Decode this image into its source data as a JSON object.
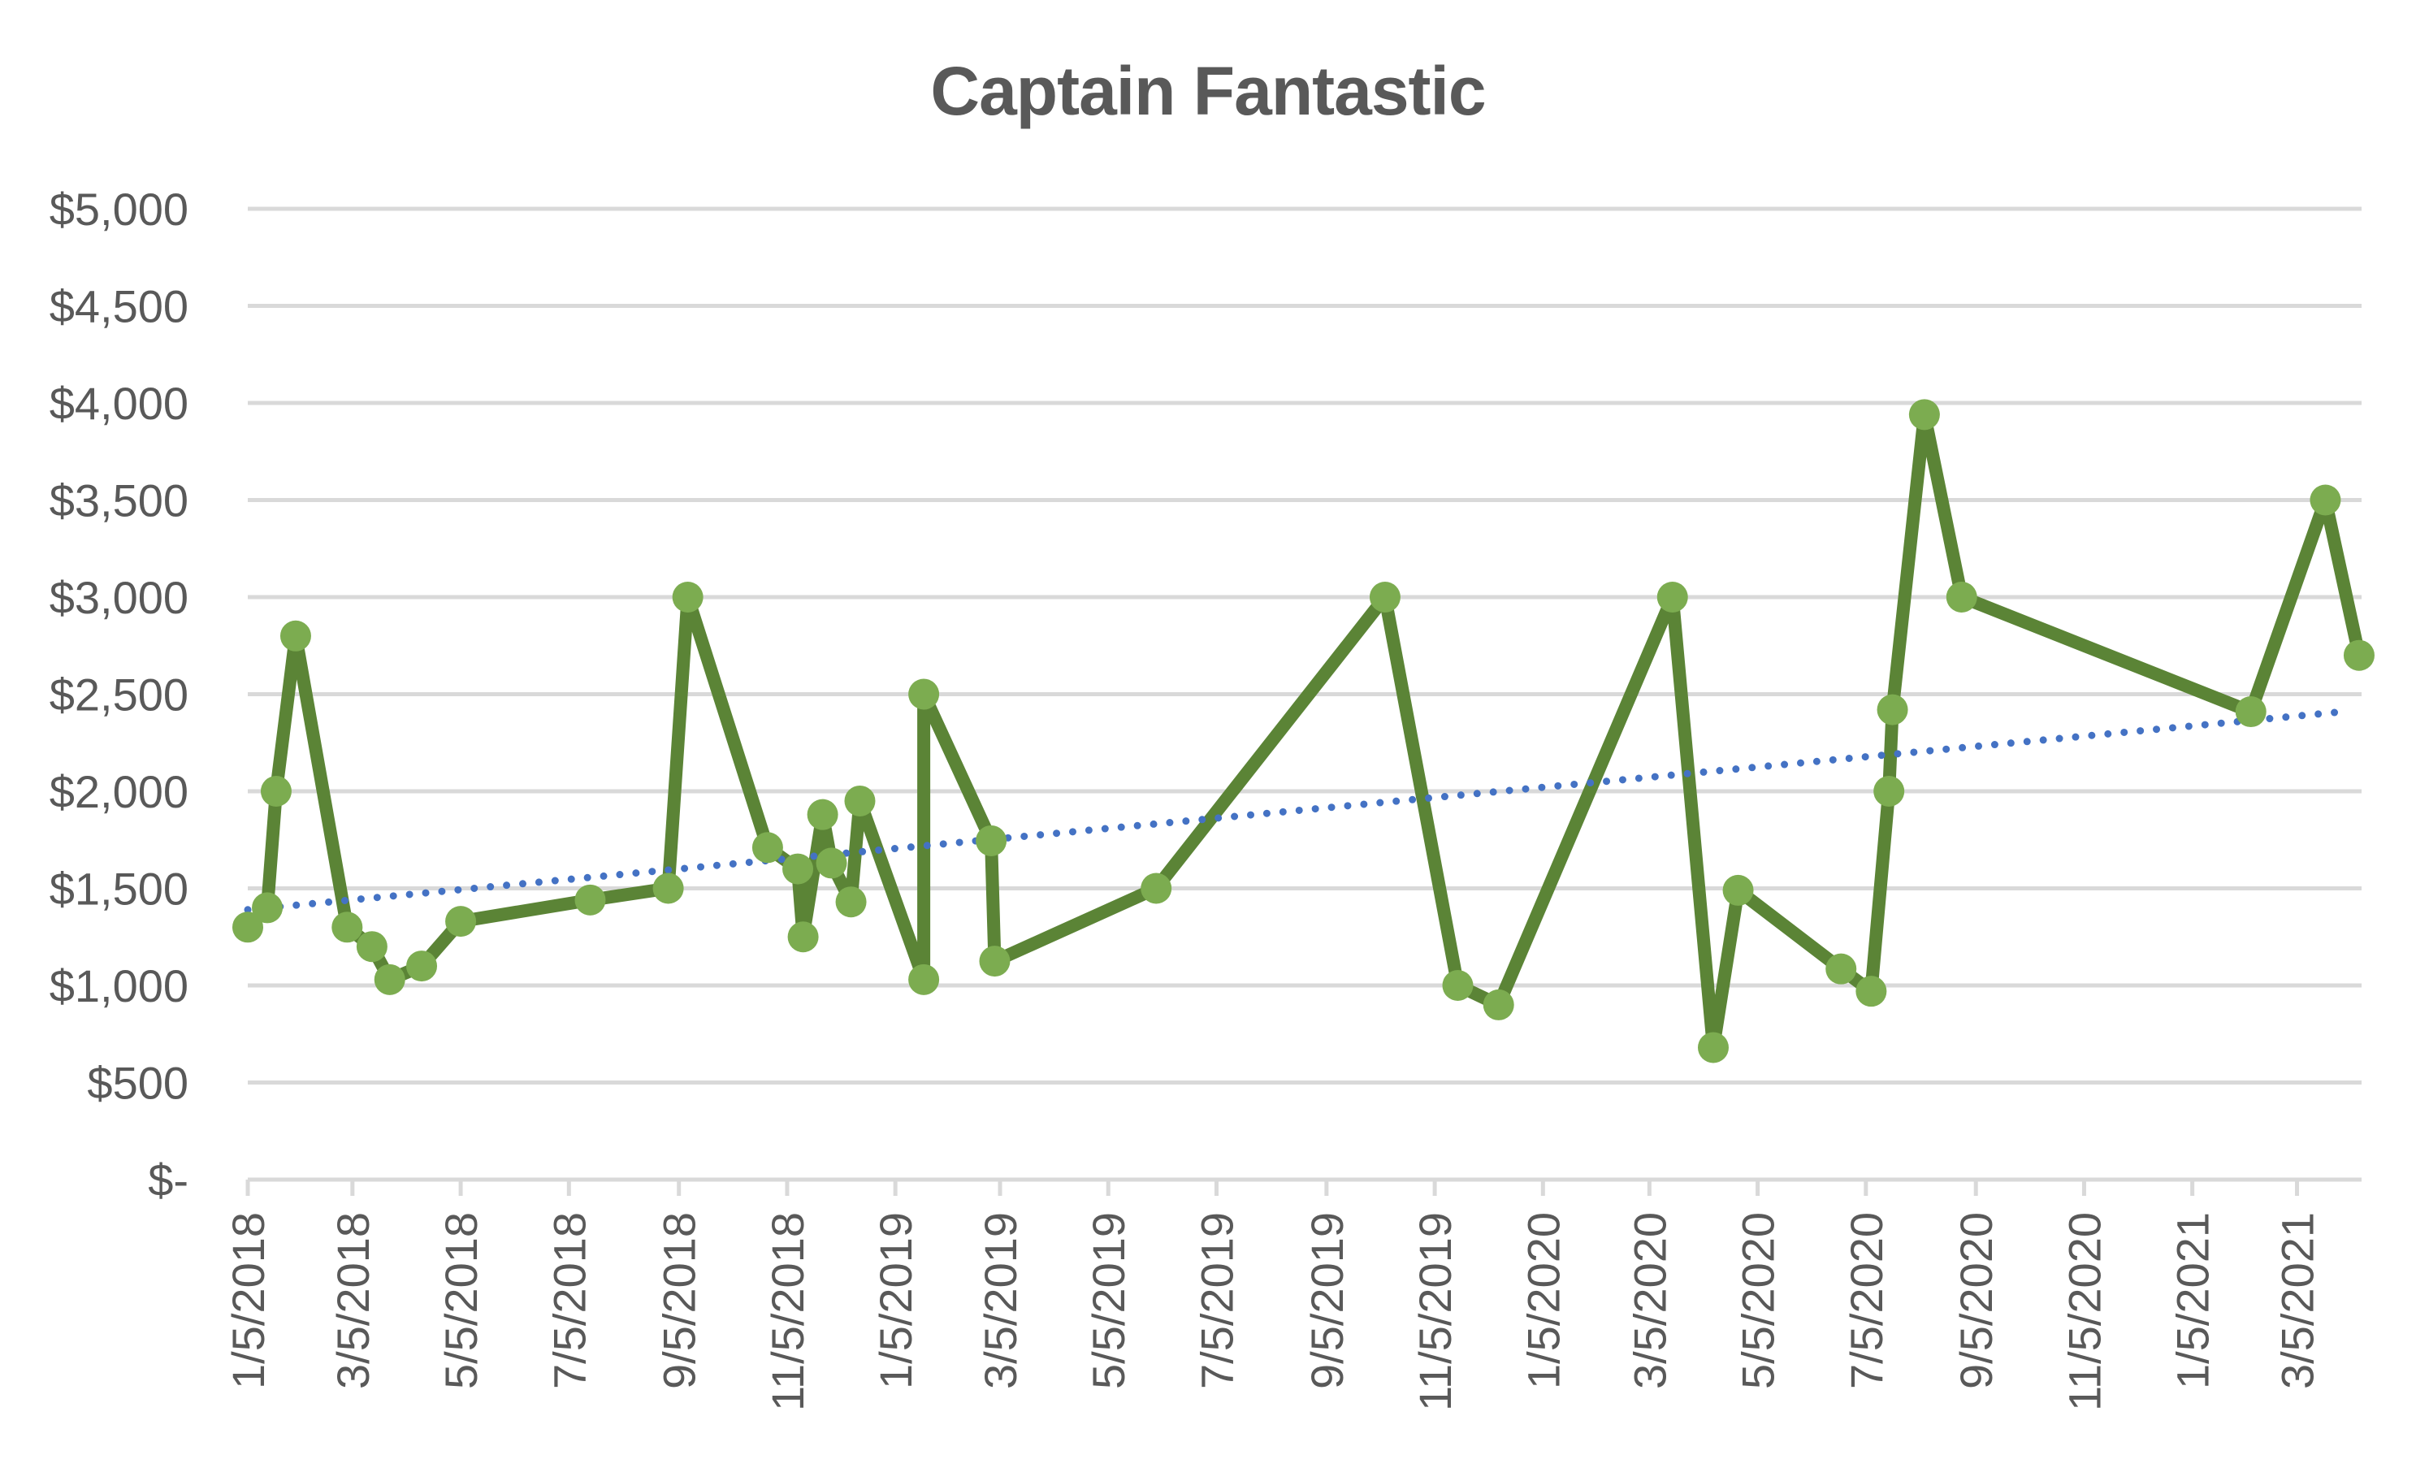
{
  "chart_data": {
    "type": "line",
    "title": "Captain Fantastic",
    "xlabel": "",
    "ylabel": "",
    "x_axis_type": "date",
    "ylim": [
      0,
      5000
    ],
    "xlim": [
      "1/5/2018",
      "4/10/2021"
    ],
    "grid": true,
    "legend": "none",
    "y_ticks": [
      0,
      500,
      1000,
      1500,
      2000,
      2500,
      3000,
      3500,
      4000,
      4500,
      5000
    ],
    "y_tick_labels": [
      "$-",
      "$500",
      "$1,000",
      "$1,500",
      "$2,000",
      "$2,500",
      "$3,000",
      "$3,500",
      "$4,000",
      "$4,500",
      "$5,000"
    ],
    "x_tick_labels": [
      "1/5/2018",
      "3/5/2018",
      "5/5/2018",
      "7/5/2018",
      "9/5/2018",
      "11/5/2018",
      "1/5/2019",
      "3/5/2019",
      "5/5/2019",
      "7/5/2019",
      "9/5/2019",
      "11/5/2019",
      "1/5/2020",
      "3/5/2020",
      "5/5/2020",
      "7/5/2020",
      "9/5/2020",
      "11/5/2020",
      "1/5/2021",
      "3/5/2021"
    ],
    "series": [
      {
        "name": "Captain Fantastic",
        "color": "#5b8436",
        "marker_color": "#7cac50",
        "x": [
          "1/5/2018",
          "1/16/2018",
          "1/21/2018",
          "2/1/2018",
          "3/2/2018",
          "3/16/2018",
          "3/26/2018",
          "4/13/2018",
          "5/5/2018",
          "7/17/2018",
          "8/30/2018",
          "9/10/2018",
          "10/25/2018",
          "11/11/2018",
          "11/14/2018",
          "11/25/2018",
          "11/30/2018",
          "12/11/2018",
          "12/16/2018",
          "1/21/2019",
          "1/21/2019",
          "2/28/2019",
          "3/2/2019",
          "6/1/2019",
          "10/8/2019",
          "11/18/2019",
          "12/11/2019",
          "3/18/2020",
          "4/10/2020",
          "4/24/2020",
          "6/21/2020",
          "7/8/2020",
          "7/18/2020",
          "7/20/2020",
          "8/7/2020",
          "8/28/2020",
          "2/7/2021",
          "3/21/2021",
          "4/9/2021"
        ],
        "values": [
          1300,
          1400,
          2000,
          2800,
          1300,
          1200,
          1030,
          1100,
          1330,
          1440,
          1500,
          3000,
          1710,
          1600,
          1250,
          1880,
          1630,
          1430,
          1950,
          1030,
          2500,
          1745,
          1125,
          1500,
          3000,
          1000,
          900,
          3000,
          680,
          1490,
          1085,
          970,
          2000,
          2420,
          3940,
          3000,
          2410,
          3500,
          2700
        ]
      }
    ],
    "trendline": {
      "type": "linear",
      "style": "dotted",
      "color": "#4472c4",
      "start": {
        "x": "1/5/2018",
        "y": 1390
      },
      "end": {
        "x": "3/31/2021",
        "y": 2410
      }
    }
  }
}
